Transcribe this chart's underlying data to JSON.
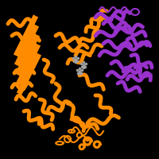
{
  "background_color": "#000000",
  "chain_a_color": "#FF8C00",
  "chain_b_color": "#9932CC",
  "ligand_color": "#A0A0A0",
  "figure_size": [
    2.0,
    2.0
  ],
  "dpi": 100
}
